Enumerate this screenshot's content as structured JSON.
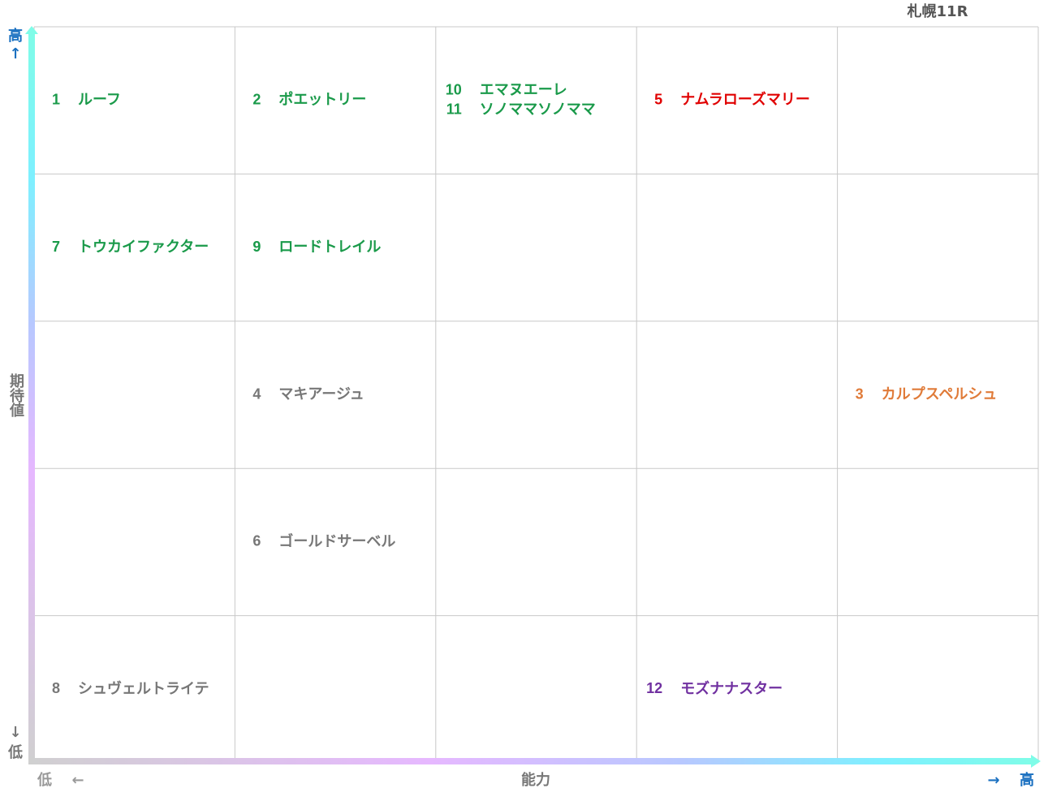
{
  "title": "札幌11R",
  "y_axis": {
    "high": "高",
    "up_arrow": "↑",
    "label": "期待値",
    "down_arrow": "↓",
    "low": "低"
  },
  "x_axis": {
    "low": "低",
    "left_arrow": "←",
    "label": "能力",
    "right_arrow": "→",
    "high": "高"
  },
  "grid": [
    [
      [
        {
          "number": 1,
          "name": "ルーフ",
          "color": "#1a9a4a"
        }
      ],
      [
        {
          "number": 2,
          "name": "ポエットリー",
          "color": "#1a9a4a"
        }
      ],
      [
        {
          "number": 10,
          "name": "エマヌエーレ",
          "color": "#1a9a4a"
        },
        {
          "number": 11,
          "name": "ソノママソノママ",
          "color": "#1a9a4a"
        }
      ],
      [
        {
          "number": 5,
          "name": "ナムラローズマリー",
          "color": "#e00000"
        }
      ],
      []
    ],
    [
      [
        {
          "number": 7,
          "name": "トウカイファクター",
          "color": "#1a9a4a"
        }
      ],
      [
        {
          "number": 9,
          "name": "ロードトレイル",
          "color": "#1a9a4a"
        }
      ],
      [],
      [],
      []
    ],
    [
      [],
      [
        {
          "number": 4,
          "name": "マキアージュ",
          "color": "#777777"
        }
      ],
      [],
      [],
      [
        {
          "number": 3,
          "name": "カルプスペルシュ",
          "color": "#e07b39"
        }
      ]
    ],
    [
      [],
      [
        {
          "number": 6,
          "name": "ゴールドサーベル",
          "color": "#777777"
        }
      ],
      [],
      [],
      []
    ],
    [
      [
        {
          "number": 8,
          "name": "シュヴェルトライテ",
          "color": "#777777"
        }
      ],
      [],
      [],
      [
        {
          "number": 12,
          "name": "モズナナスター",
          "color": "#7030a0"
        }
      ],
      []
    ]
  ]
}
